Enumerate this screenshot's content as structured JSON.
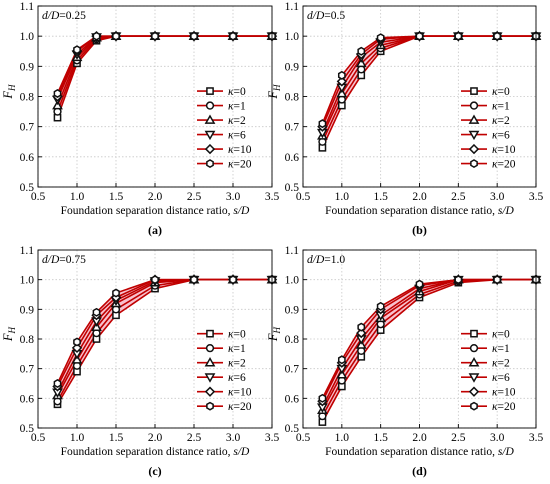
{
  "figure": {
    "colors": {
      "line": "#c00000",
      "band": "#f7b9c8",
      "marker_edge": "#111111",
      "grid": "#c8c8c8"
    }
  },
  "chart_data": [
    {
      "type": "line",
      "panel_label": "(a)",
      "annotation": "d/D=0.25",
      "xlabel": "Foundation separation distance ratio, s/D",
      "ylabel": "F_H",
      "xlim": [
        0.5,
        3.5
      ],
      "ylim": [
        0.5,
        1.1
      ],
      "xticks": [
        "0.5",
        "1.0",
        "1.5",
        "2.0",
        "2.5",
        "3.0",
        "3.5"
      ],
      "yticks": [
        "0.5",
        "0.6",
        "0.7",
        "0.8",
        "0.9",
        "1.0",
        "1.1"
      ],
      "grid": true,
      "legend_position": "right-middle",
      "x": [
        0.75,
        1.0,
        1.25,
        1.5,
        2.0,
        2.5,
        3.0,
        3.5
      ],
      "series": [
        {
          "name": "κ=0",
          "marker": "square",
          "values": [
            0.73,
            0.91,
            0.985,
            1.0,
            1.0,
            1.0,
            1.0,
            1.0
          ]
        },
        {
          "name": "κ=1",
          "marker": "circle",
          "values": [
            0.75,
            0.92,
            0.99,
            1.0,
            1.0,
            1.0,
            1.0,
            1.0
          ]
        },
        {
          "name": "κ=2",
          "marker": "triangle-up",
          "values": [
            0.77,
            0.93,
            0.995,
            1.0,
            1.0,
            1.0,
            1.0,
            1.0
          ]
        },
        {
          "name": "κ=6",
          "marker": "triangle-down",
          "values": [
            0.79,
            0.94,
            0.997,
            1.0,
            1.0,
            1.0,
            1.0,
            1.0
          ]
        },
        {
          "name": "κ=10",
          "marker": "diamond",
          "values": [
            0.8,
            0.95,
            1.0,
            1.0,
            1.0,
            1.0,
            1.0,
            1.0
          ]
        },
        {
          "name": "κ=20",
          "marker": "hexagon",
          "values": [
            0.81,
            0.955,
            1.0,
            1.0,
            1.0,
            1.0,
            1.0,
            1.0
          ]
        }
      ]
    },
    {
      "type": "line",
      "panel_label": "(b)",
      "annotation": "d/D=0.5",
      "xlabel": "Foundation separation distance ratio, s/D",
      "ylabel": "F_H",
      "xlim": [
        0.5,
        3.5
      ],
      "ylim": [
        0.5,
        1.1
      ],
      "xticks": [
        "0.5",
        "1.0",
        "1.5",
        "2.0",
        "2.5",
        "3.0",
        "3.5"
      ],
      "yticks": [
        "0.5",
        "0.6",
        "0.7",
        "0.8",
        "0.9",
        "1.0",
        "1.1"
      ],
      "grid": true,
      "legend_position": "right-middle",
      "x": [
        0.75,
        1.0,
        1.25,
        1.5,
        2.0,
        2.5,
        3.0,
        3.5
      ],
      "series": [
        {
          "name": "κ=0",
          "marker": "square",
          "values": [
            0.63,
            0.77,
            0.87,
            0.95,
            1.0,
            1.0,
            1.0,
            1.0
          ]
        },
        {
          "name": "κ=1",
          "marker": "circle",
          "values": [
            0.65,
            0.79,
            0.89,
            0.96,
            1.0,
            1.0,
            1.0,
            1.0
          ]
        },
        {
          "name": "κ=2",
          "marker": "triangle-up",
          "values": [
            0.67,
            0.81,
            0.91,
            0.97,
            1.0,
            1.0,
            1.0,
            1.0
          ]
        },
        {
          "name": "κ=6",
          "marker": "triangle-down",
          "values": [
            0.68,
            0.83,
            0.93,
            0.98,
            1.0,
            1.0,
            1.0,
            1.0
          ]
        },
        {
          "name": "κ=10",
          "marker": "diamond",
          "values": [
            0.7,
            0.85,
            0.94,
            0.99,
            1.0,
            1.0,
            1.0,
            1.0
          ]
        },
        {
          "name": "κ=20",
          "marker": "hexagon",
          "values": [
            0.71,
            0.87,
            0.95,
            0.995,
            1.0,
            1.0,
            1.0,
            1.0
          ]
        }
      ]
    },
    {
      "type": "line",
      "panel_label": "(c)",
      "annotation": "d/D=0.75",
      "xlabel": "Foundation separation distance ratio, s/D",
      "ylabel": "F_H",
      "xlim": [
        0.5,
        3.5
      ],
      "ylim": [
        0.5,
        1.1
      ],
      "xticks": [
        "0.5",
        "1.0",
        "1.5",
        "2.0",
        "2.5",
        "3.0",
        "3.5"
      ],
      "yticks": [
        "0.5",
        "0.6",
        "0.7",
        "0.8",
        "0.9",
        "1.0",
        "1.1"
      ],
      "grid": true,
      "legend_position": "right-middle",
      "x": [
        0.75,
        1.0,
        1.25,
        1.5,
        2.0,
        2.5,
        3.0,
        3.5
      ],
      "series": [
        {
          "name": "κ=0",
          "marker": "square",
          "values": [
            0.58,
            0.69,
            0.8,
            0.88,
            0.97,
            1.0,
            1.0,
            1.0
          ]
        },
        {
          "name": "κ=1",
          "marker": "circle",
          "values": [
            0.59,
            0.71,
            0.82,
            0.9,
            0.98,
            1.0,
            1.0,
            1.0
          ]
        },
        {
          "name": "κ=2",
          "marker": "triangle-up",
          "values": [
            0.61,
            0.73,
            0.84,
            0.92,
            0.99,
            1.0,
            1.0,
            1.0
          ]
        },
        {
          "name": "κ=6",
          "marker": "triangle-down",
          "values": [
            0.62,
            0.75,
            0.86,
            0.93,
            0.995,
            1.0,
            1.0,
            1.0
          ]
        },
        {
          "name": "κ=10",
          "marker": "diamond",
          "values": [
            0.64,
            0.77,
            0.88,
            0.94,
            1.0,
            1.0,
            1.0,
            1.0
          ]
        },
        {
          "name": "κ=20",
          "marker": "hexagon",
          "values": [
            0.65,
            0.79,
            0.89,
            0.955,
            1.0,
            1.0,
            1.0,
            1.0
          ]
        }
      ]
    },
    {
      "type": "line",
      "panel_label": "(d)",
      "annotation": "d/D=1.0",
      "xlabel": "Foundation separation distance ratio, s/D",
      "ylabel": "F_H",
      "xlim": [
        0.5,
        3.5
      ],
      "ylim": [
        0.5,
        1.1
      ],
      "xticks": [
        "0.5",
        "1.0",
        "1.5",
        "2.0",
        "2.5",
        "3.0",
        "3.5"
      ],
      "yticks": [
        "0.5",
        "0.6",
        "0.7",
        "0.8",
        "0.9",
        "1.0",
        "1.1"
      ],
      "grid": true,
      "legend_position": "right-middle",
      "x": [
        0.75,
        1.0,
        1.25,
        1.5,
        2.0,
        2.5,
        3.0,
        3.5
      ],
      "series": [
        {
          "name": "κ=0",
          "marker": "square",
          "values": [
            0.52,
            0.64,
            0.74,
            0.83,
            0.94,
            0.99,
            1.0,
            1.0
          ]
        },
        {
          "name": "κ=1",
          "marker": "circle",
          "values": [
            0.54,
            0.66,
            0.76,
            0.85,
            0.95,
            0.995,
            1.0,
            1.0
          ]
        },
        {
          "name": "κ=2",
          "marker": "triangle-up",
          "values": [
            0.56,
            0.68,
            0.78,
            0.87,
            0.96,
            1.0,
            1.0,
            1.0
          ]
        },
        {
          "name": "κ=6",
          "marker": "triangle-down",
          "values": [
            0.57,
            0.7,
            0.8,
            0.88,
            0.97,
            1.0,
            1.0,
            1.0
          ]
        },
        {
          "name": "κ=10",
          "marker": "diamond",
          "values": [
            0.59,
            0.72,
            0.82,
            0.9,
            0.98,
            1.0,
            1.0,
            1.0
          ]
        },
        {
          "name": "κ=20",
          "marker": "hexagon",
          "values": [
            0.6,
            0.73,
            0.84,
            0.91,
            0.985,
            1.0,
            1.0,
            1.0
          ]
        }
      ]
    }
  ]
}
